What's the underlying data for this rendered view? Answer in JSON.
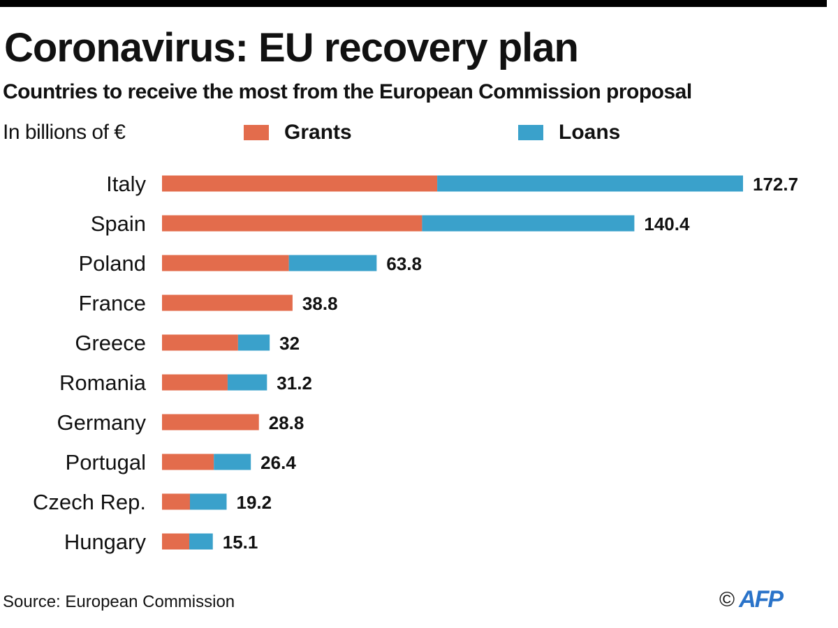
{
  "title": "Coronavirus: EU recovery plan",
  "subtitle": "Countries to receive the most from the European Commission proposal",
  "unit_label": "In billions of €",
  "legend": [
    {
      "name": "Grants",
      "color": "#e36c4c"
    },
    {
      "name": "Loans",
      "color": "#3aa1cb"
    }
  ],
  "source": "Source: European Commission",
  "credit": {
    "copyright": "©",
    "logo_text": "AFP",
    "logo_color": "#2a73c9"
  },
  "chart_data": {
    "type": "bar",
    "orientation": "horizontal",
    "stacked": true,
    "title": "Coronavirus: EU recovery plan",
    "subtitle": "Countries to receive the most from the European Commission proposal",
    "xlabel": "In billions of €",
    "ylabel": "",
    "categories": [
      "Italy",
      "Spain",
      "Poland",
      "France",
      "Greece",
      "Romania",
      "Germany",
      "Portugal",
      "Czech Rep.",
      "Hungary"
    ],
    "series": [
      {
        "name": "Grants",
        "color": "#e36c4c",
        "values": [
          81.8,
          77.3,
          37.7,
          38.8,
          22.6,
          19.5,
          28.8,
          15.4,
          8.3,
          8.1
        ]
      },
      {
        "name": "Loans",
        "color": "#3aa1cb",
        "values": [
          90.9,
          63.1,
          26.1,
          0,
          9.4,
          11.7,
          0,
          11.0,
          10.9,
          7.0
        ]
      }
    ],
    "totals": [
      172.7,
      140.4,
      63.8,
      38.8,
      32,
      31.2,
      28.8,
      26.4,
      19.2,
      15.1
    ],
    "total_labels": [
      "172.7",
      "140.4",
      "63.8",
      "38.8",
      "32",
      "31.2",
      "28.8",
      "26.4",
      "19.2",
      "15.1"
    ],
    "xlim": [
      0,
      172.7
    ],
    "grid": false,
    "legend_position": "top"
  }
}
